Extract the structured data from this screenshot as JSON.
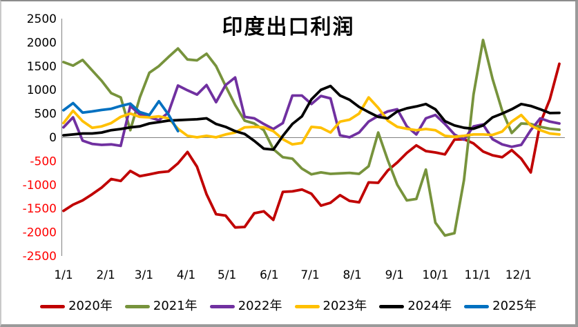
{
  "title": "印度出口利润",
  "colors": {
    "axis_line": "#808080",
    "zero_line": "#808080",
    "tick_label": "#000000",
    "negative_tick_label": "#ff0000",
    "background": "#ffffff"
  },
  "legend": {
    "position": "bottom",
    "items": [
      {
        "label": "2020年",
        "color": "#C00000"
      },
      {
        "label": "2021年",
        "color": "#77933C"
      },
      {
        "label": "2022年",
        "color": "#7030A0"
      },
      {
        "label": "2023年",
        "color": "#FFC000"
      },
      {
        "label": "2024年",
        "color": "#000000"
      },
      {
        "label": "2025年",
        "color": "#0070C0"
      }
    ]
  },
  "chart_data": {
    "type": "line",
    "title": "印度出口利润",
    "xlabel": "",
    "ylabel": "",
    "ylim": [
      -2500,
      2500
    ],
    "y_tick_step": 500,
    "y_tick_values": [
      2500,
      2000,
      1500,
      1000,
      500,
      0,
      -500,
      -1000,
      -1500,
      -2000,
      -2500
    ],
    "x_tick_labels": [
      "1/1",
      "2/1",
      "3/1",
      "4/1",
      "5/1",
      "6/1",
      "7/1",
      "8/1",
      "9/1",
      "10/1",
      "11/1",
      "12/1"
    ],
    "x_tick_day_of_year": [
      0,
      31,
      59,
      90,
      120,
      151,
      181,
      212,
      243,
      273,
      304,
      334
    ],
    "grid": "zero-line-only",
    "legend_position": "bottom",
    "x": [
      "1/1",
      "1/8",
      "1/15",
      "1/22",
      "1/29",
      "2/5",
      "2/12",
      "2/19",
      "2/26",
      "3/5",
      "3/12",
      "3/19",
      "3/26",
      "4/2",
      "4/9",
      "4/16",
      "4/23",
      "4/30",
      "5/7",
      "5/14",
      "5/21",
      "5/28",
      "6/4",
      "6/11",
      "6/18",
      "6/25",
      "7/2",
      "7/9",
      "7/16",
      "7/23",
      "7/30",
      "8/6",
      "8/13",
      "8/20",
      "8/27",
      "9/3",
      "9/10",
      "9/17",
      "9/24",
      "10/1",
      "10/8",
      "10/15",
      "10/22",
      "10/29",
      "11/5",
      "11/12",
      "11/19",
      "11/26",
      "12/3",
      "12/10",
      "12/17",
      "12/24",
      "12/31"
    ],
    "series": [
      {
        "name": "2020年",
        "color": "#C00000",
        "values": [
          -1550,
          -1420,
          -1330,
          -1200,
          -1060,
          -880,
          -920,
          -710,
          -820,
          -780,
          -740,
          -720,
          -550,
          -310,
          -620,
          -1200,
          -1620,
          -1650,
          -1900,
          -1890,
          -1600,
          -1560,
          -1740,
          -1150,
          -1140,
          -1100,
          -1190,
          -1440,
          -1380,
          -1220,
          -1340,
          -1370,
          -950,
          -960,
          -700,
          -530,
          -330,
          -170,
          -290,
          -320,
          -360,
          -50,
          -40,
          -130,
          -300,
          -380,
          -420,
          -270,
          -450,
          -740,
          300,
          800,
          1550
        ]
      },
      {
        "name": "2021年",
        "color": "#77933C",
        "values": [
          1585,
          1510,
          1630,
          1410,
          1190,
          930,
          840,
          150,
          840,
          1360,
          1500,
          1690,
          1870,
          1640,
          1620,
          1760,
          1500,
          1080,
          680,
          350,
          290,
          150,
          -250,
          -420,
          -450,
          -660,
          -780,
          -740,
          -770,
          -760,
          -750,
          -770,
          -610,
          100,
          -480,
          -1000,
          -1330,
          -1300,
          -680,
          -1800,
          -2070,
          -2020,
          -900,
          900,
          2050,
          1230,
          560,
          90,
          290,
          280,
          220,
          180,
          160
        ]
      },
      {
        "name": "2022年",
        "color": "#7030A0",
        "values": [
          210,
          420,
          -70,
          -140,
          -160,
          -150,
          -180,
          660,
          480,
          420,
          360,
          520,
          1090,
          990,
          900,
          1100,
          740,
          1100,
          1260,
          430,
          400,
          280,
          175,
          300,
          880,
          880,
          700,
          870,
          820,
          40,
          0,
          100,
          330,
          450,
          545,
          590,
          230,
          60,
          400,
          470,
          280,
          60,
          -50,
          230,
          270,
          -40,
          -150,
          -200,
          -160,
          150,
          400,
          330,
          290
        ]
      },
      {
        "name": "2023年",
        "color": "#FFC000",
        "values": [
          300,
          560,
          340,
          200,
          230,
          300,
          430,
          500,
          430,
          420,
          440,
          400,
          180,
          30,
          0,
          30,
          0,
          60,
          100,
          210,
          220,
          210,
          130,
          -40,
          -150,
          -120,
          220,
          200,
          100,
          330,
          370,
          500,
          840,
          620,
          350,
          220,
          180,
          150,
          175,
          150,
          30,
          10,
          30,
          60,
          60,
          50,
          120,
          330,
          470,
          250,
          150,
          80,
          60
        ]
      },
      {
        "name": "2024年",
        "color": "#000000",
        "values": [
          40,
          60,
          80,
          80,
          100,
          150,
          175,
          210,
          230,
          290,
          320,
          350,
          360,
          370,
          380,
          400,
          280,
          220,
          130,
          70,
          -75,
          -240,
          -260,
          30,
          280,
          440,
          800,
          1000,
          1080,
          880,
          790,
          640,
          530,
          430,
          400,
          545,
          610,
          650,
          700,
          590,
          340,
          250,
          200,
          180,
          250,
          420,
          500,
          590,
          700,
          660,
          590,
          510,
          515
        ]
      },
      {
        "name": "2025年",
        "color": "#0070C0",
        "values": [
          570,
          720,
          520,
          545,
          575,
          600,
          660,
          710,
          530,
          470,
          760,
          480,
          130,
          null,
          null,
          null,
          null,
          null,
          null,
          null,
          null,
          null,
          null,
          null,
          null,
          null,
          null,
          null,
          null,
          null,
          null,
          null,
          null,
          null,
          null,
          null,
          null,
          null,
          null,
          null,
          null,
          null,
          null,
          null,
          null,
          null,
          null,
          null,
          null,
          null,
          null,
          null,
          null
        ]
      }
    ]
  }
}
